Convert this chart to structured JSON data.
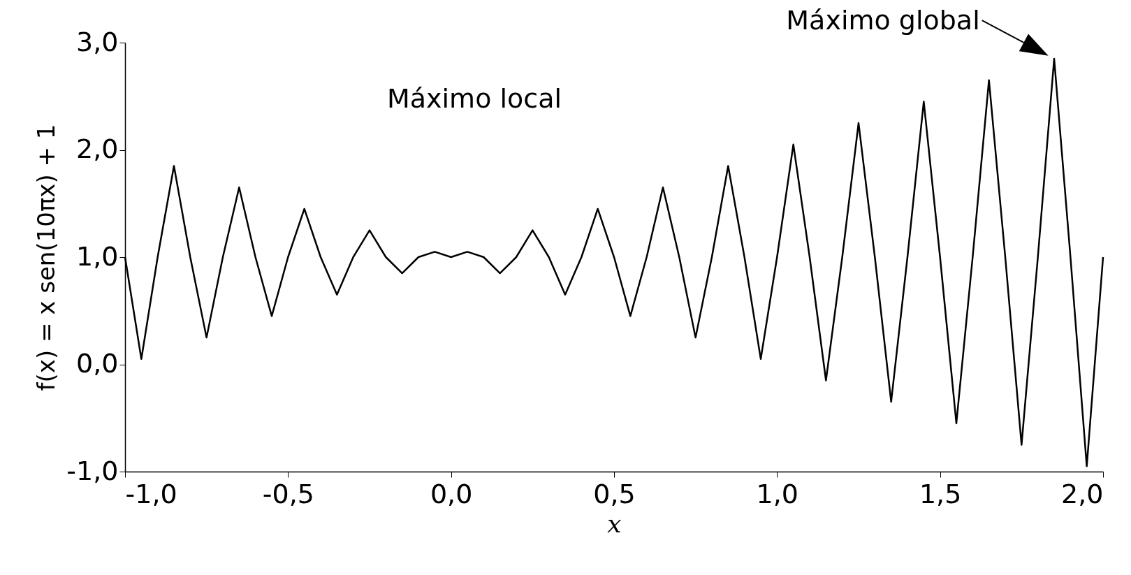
{
  "chart_data": {
    "type": "line",
    "xlabel": "x",
    "ylabel": "f(x) = x sen(10πx) + 1",
    "x": [
      -1.0,
      -0.95,
      -0.9,
      -0.85,
      -0.8,
      -0.75,
      -0.7,
      -0.65,
      -0.6,
      -0.55,
      -0.5,
      -0.45,
      -0.4,
      -0.35,
      -0.3,
      -0.25,
      -0.2,
      -0.15,
      -0.1,
      -0.05,
      0.0,
      0.05,
      0.1,
      0.15,
      0.2,
      0.25,
      0.3,
      0.35,
      0.4,
      0.45,
      0.5,
      0.55,
      0.6,
      0.65,
      0.7,
      0.75,
      0.8,
      0.85,
      0.9,
      0.95,
      1.0,
      1.05,
      1.1,
      1.15,
      1.2,
      1.25,
      1.3,
      1.35,
      1.4,
      1.45,
      1.5,
      1.55,
      1.6,
      1.65,
      1.7,
      1.75,
      1.8,
      1.85,
      1.9,
      1.95,
      2.0
    ],
    "series": [
      {
        "color": "#000000",
        "values": [
          1.0,
          0.05,
          1.0,
          1.85,
          1.0,
          0.25,
          1.0,
          1.65,
          1.0,
          0.45,
          1.0,
          1.45,
          1.0,
          0.65,
          1.0,
          1.25,
          1.0,
          0.85,
          1.0,
          1.05,
          1.0,
          1.05,
          1.0,
          0.85,
          1.0,
          1.25,
          1.0,
          0.65,
          1.0,
          1.45,
          1.0,
          0.45,
          1.0,
          1.65,
          1.0,
          0.25,
          1.0,
          1.85,
          1.0,
          0.05,
          1.0,
          2.05,
          1.0,
          -0.15,
          1.0,
          2.25,
          1.0,
          -0.35,
          1.0,
          2.45,
          1.0,
          -0.55,
          1.0,
          2.65,
          1.0,
          -0.75,
          1.0,
          2.85,
          1.0,
          -0.95,
          1.0
        ]
      }
    ],
    "xlim": [
      -1.0,
      2.0
    ],
    "xticks": [
      {
        "value": -1.0,
        "label": "-1,0"
      },
      {
        "value": -0.5,
        "label": "-0,5"
      },
      {
        "value": 0.0,
        "label": "0,0"
      },
      {
        "value": 0.5,
        "label": "0,5"
      },
      {
        "value": 1.0,
        "label": "1,0"
      },
      {
        "value": 1.5,
        "label": "1,5"
      },
      {
        "value": 2.0,
        "label": "2,0"
      }
    ],
    "ylim": [
      -1.0,
      3.0
    ],
    "yticks": [
      {
        "value": -1.0,
        "label": "-1,0"
      },
      {
        "value": 0.0,
        "label": "0,0"
      },
      {
        "value": 1.0,
        "label": "1,0"
      },
      {
        "value": 2.0,
        "label": "2,0"
      },
      {
        "value": 3.0,
        "label": "3,0"
      }
    ],
    "grid": false,
    "marker": "none",
    "line_style": "solid",
    "annotations": [
      "Máximo local",
      {
        "text": "Máximo global",
        "x": 1.85,
        "y": 2.85
      }
    ]
  }
}
